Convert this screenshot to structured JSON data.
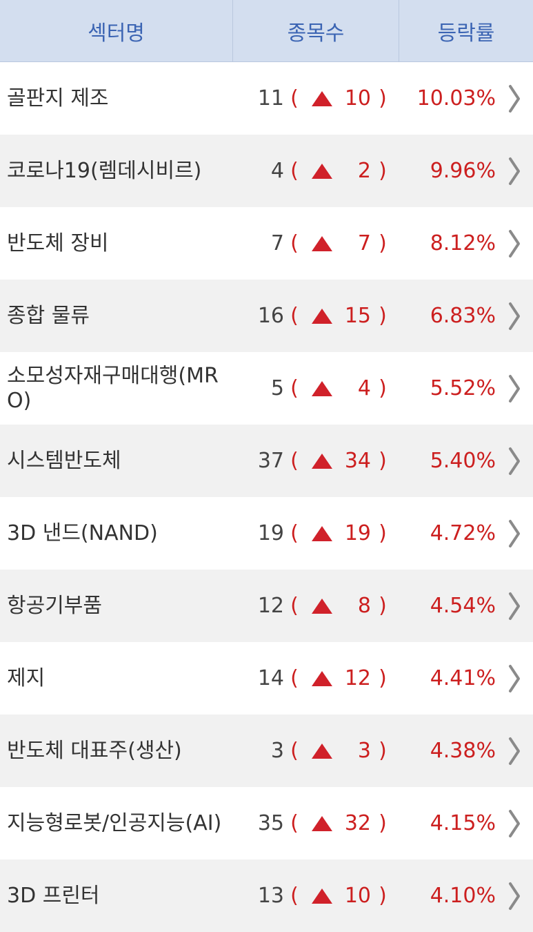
{
  "header": {
    "sector": "섹터명",
    "count": "종목수",
    "rate": "등락률"
  },
  "colors": {
    "header_bg": "#d3deef",
    "header_text": "#3b64b3",
    "up_red": "#cc1f1f",
    "arrow_red": "#d0212a"
  },
  "rows": [
    {
      "name": "골판지 제조",
      "total": "11",
      "up": "10",
      "rate": "10.03%"
    },
    {
      "name": "코로나19(렘데시비르)",
      "total": "4",
      "up": "2",
      "rate": "9.96%"
    },
    {
      "name": "반도체 장비",
      "total": "7",
      "up": "7",
      "rate": "8.12%"
    },
    {
      "name": "종합 물류",
      "total": "16",
      "up": "15",
      "rate": "6.83%"
    },
    {
      "name": "소모성자재구매대행(MRO)",
      "total": "5",
      "up": "4",
      "rate": "5.52%"
    },
    {
      "name": "시스템반도체",
      "total": "37",
      "up": "34",
      "rate": "5.40%"
    },
    {
      "name": "3D 낸드(NAND)",
      "total": "19",
      "up": "19",
      "rate": "4.72%"
    },
    {
      "name": "항공기부품",
      "total": "12",
      "up": "8",
      "rate": "4.54%"
    },
    {
      "name": "제지",
      "total": "14",
      "up": "12",
      "rate": "4.41%"
    },
    {
      "name": "반도체 대표주(생산)",
      "total": "3",
      "up": "3",
      "rate": "4.38%"
    },
    {
      "name": "지능형로봇/인공지능(AI)",
      "total": "35",
      "up": "32",
      "rate": "4.15%"
    },
    {
      "name": "3D 프린터",
      "total": "13",
      "up": "10",
      "rate": "4.10%"
    }
  ],
  "symbols": {
    "open": "(",
    "close": ")",
    "arrow_icon": "triangle-up-icon",
    "row_icon": "chevron-right-icon"
  }
}
